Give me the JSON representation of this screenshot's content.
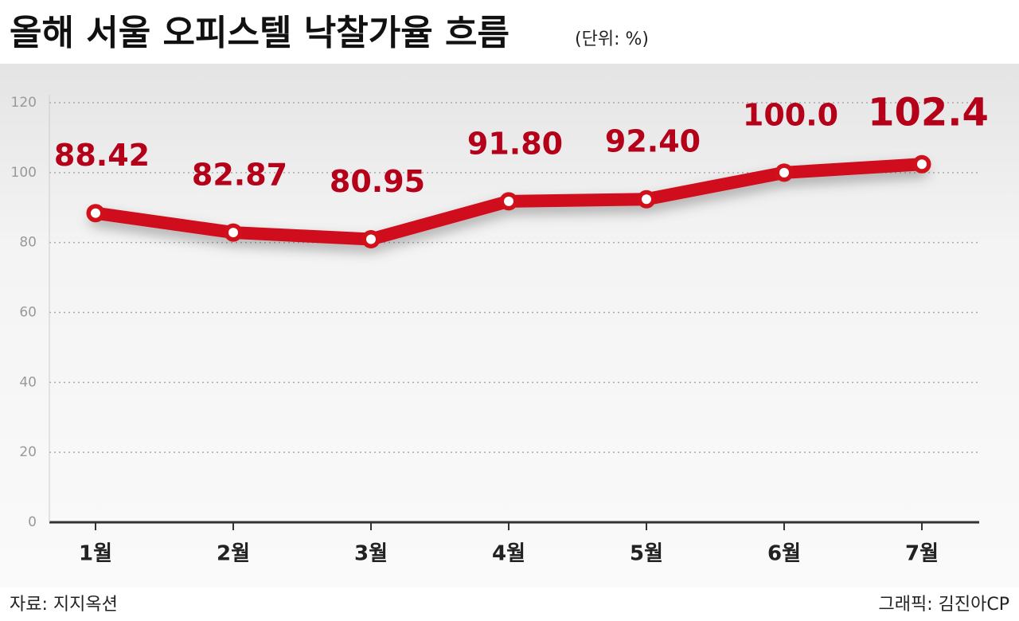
{
  "chart_data": {
    "type": "line",
    "title": "올해 서울 오피스텔 낙찰가율 흐름",
    "subtitle": "(단위: %)",
    "categories": [
      "1월",
      "2월",
      "3월",
      "4월",
      "5월",
      "6월",
      "7월"
    ],
    "values": [
      88.42,
      82.87,
      80.95,
      91.8,
      92.4,
      100.0,
      102.4
    ],
    "value_labels": [
      "88.42",
      "82.87",
      "80.95",
      "91.80",
      "92.40",
      "100.0",
      "102.4"
    ],
    "color": "#d0111b",
    "ylim": [
      0,
      120
    ],
    "yticks": [
      0,
      20,
      40,
      60,
      80,
      100,
      120
    ],
    "grid": true,
    "source": "자료: 지지옥션",
    "credit": "그래픽: 김진아CP"
  }
}
